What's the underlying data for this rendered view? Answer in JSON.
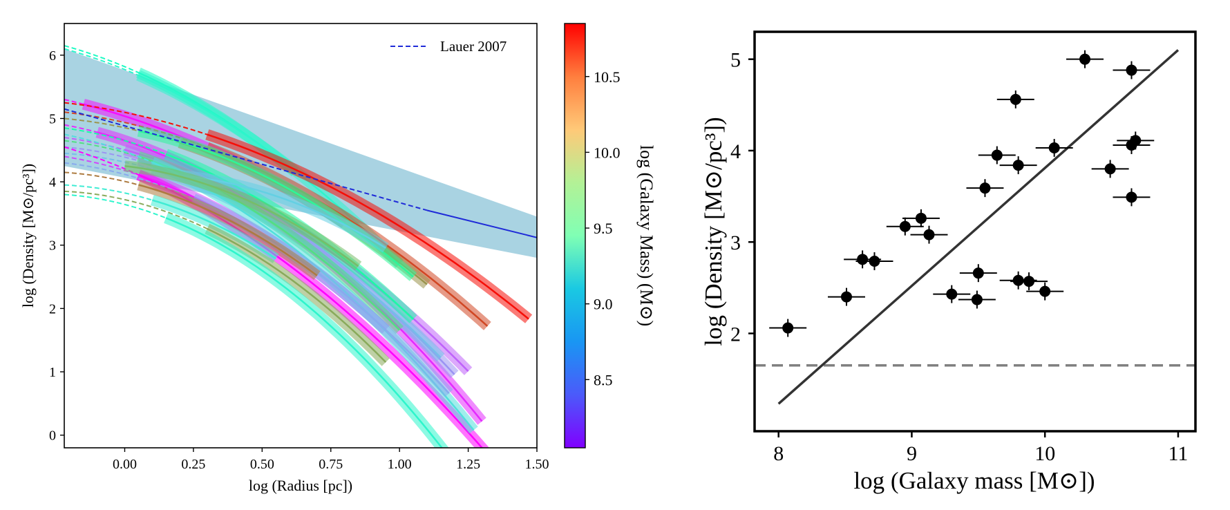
{
  "chart_data": [
    {
      "type": "line",
      "xlabel": "log (Radius [pc])",
      "ylabel": "log (Density [M⊙/pc³])",
      "xlim": [
        -0.22,
        1.5
      ],
      "ylim": [
        -0.2,
        6.5
      ],
      "xticks": [
        0.0,
        0.25,
        0.5,
        0.75,
        1.0,
        1.25,
        1.5
      ],
      "xtick_labels": [
        "0.00",
        "0.25",
        "0.50",
        "0.75",
        "1.00",
        "1.25",
        "1.50"
      ],
      "yticks": [
        0,
        1,
        2,
        3,
        4,
        5,
        6
      ],
      "ytick_labels": [
        "0",
        "1",
        "2",
        "3",
        "4",
        "5",
        "6"
      ],
      "legend": {
        "position": "top-right",
        "entries": [
          {
            "label": "Lauer 2007",
            "style": "dashed",
            "color": "#1f2bd8"
          }
        ]
      },
      "reference_band": {
        "color": "#a9d3e2",
        "x": [
          -0.22,
          1.5
        ],
        "upper": [
          6.1,
          3.45
        ],
        "lower": [
          4.25,
          2.8
        ]
      },
      "reference_line": {
        "name": "Lauer 2007",
        "color": "#1f2bd8",
        "x": [
          -0.22,
          1.1,
          1.5
        ],
        "y": [
          5.15,
          3.55,
          3.12
        ],
        "dashed_until": 1.1
      },
      "profiles": [
        {
          "mass": 9.3,
          "x0": -0.22,
          "xs": 0.05,
          "x1": 0.62,
          "y0": 6.15,
          "slope": -1.2,
          "curv": -1.4
        },
        {
          "mass": 9.2,
          "x0": -0.22,
          "xs": 0.05,
          "x1": 1.0,
          "y0": 6.1,
          "slope": -1.2,
          "curv": -1.3
        },
        {
          "mass": 8.1,
          "x0": -0.22,
          "xs": -0.15,
          "x1": 0.8,
          "y0": 5.3,
          "slope": -1.0,
          "curv": -0.9
        },
        {
          "mass": 10.8,
          "x0": -0.22,
          "xs": 0.3,
          "x1": 1.47,
          "y0": 5.25,
          "slope": -0.5,
          "curv": -0.9
        },
        {
          "mass": 10.6,
          "x0": -0.22,
          "xs": 0.3,
          "x1": 1.32,
          "y0": 5.1,
          "slope": -0.5,
          "curv": -1.1
        },
        {
          "mass": 10.3,
          "x0": -0.22,
          "xs": 0.2,
          "x1": 1.1,
          "y0": 5.0,
          "slope": -0.4,
          "curv": -1.2
        },
        {
          "mass": 8.2,
          "x0": -0.22,
          "xs": -0.1,
          "x1": 1.3,
          "y0": 4.9,
          "slope": -0.8,
          "curv": -1.5
        },
        {
          "mass": 8.4,
          "x0": -0.22,
          "xs": 0.0,
          "x1": 1.25,
          "y0": 4.7,
          "slope": -0.6,
          "curv": -1.3
        },
        {
          "mass": 8.6,
          "x0": -0.22,
          "xs": 0.05,
          "x1": 1.2,
          "y0": 4.55,
          "slope": -0.4,
          "curv": -1.5
        },
        {
          "mass": 8.8,
          "x0": -0.22,
          "xs": 0.1,
          "x1": 1.15,
          "y0": 4.45,
          "slope": -0.3,
          "curv": -1.5
        },
        {
          "mass": 9.6,
          "x0": -0.22,
          "xs": 0.15,
          "x1": 1.05,
          "y0": 4.85,
          "slope": -0.6,
          "curv": -1.4
        },
        {
          "mass": 9.9,
          "x0": -0.22,
          "xs": 0.05,
          "x1": 1.0,
          "y0": 4.65,
          "slope": -0.5,
          "curv": -1.6
        },
        {
          "mass": 8.3,
          "x0": -0.22,
          "xs": 0.05,
          "x1": 0.95,
          "y0": 4.4,
          "slope": -0.7,
          "curv": -1.4
        },
        {
          "mass": 8.0,
          "x0": -0.22,
          "xs": 0.05,
          "x1": 1.31,
          "y0": 4.55,
          "slope": -1.3,
          "curv": -1.2
        },
        {
          "mass": 9.0,
          "x0": -0.22,
          "xs": 0.1,
          "x1": 1.27,
          "y0": 4.75,
          "slope": -0.9,
          "curv": -1.5
        },
        {
          "mass": 8.7,
          "x0": -0.22,
          "xs": 0.25,
          "x1": 1.18,
          "y0": 4.3,
          "slope": -0.5,
          "curv": -1.5
        },
        {
          "mass": 10.4,
          "x0": -0.22,
          "xs": 0.05,
          "x1": 0.7,
          "y0": 4.15,
          "slope": -0.3,
          "curv": -1.6
        },
        {
          "mass": 9.1,
          "x0": -0.22,
          "xs": 0.1,
          "x1": 0.55,
          "y0": 3.95,
          "slope": -0.2,
          "curv": -1.7
        },
        {
          "mass": 10.2,
          "x0": -0.22,
          "xs": 0.3,
          "x1": 0.95,
          "y0": 3.85,
          "slope": -0.2,
          "curv": -1.8
        },
        {
          "mass": 9.2,
          "x0": -0.22,
          "xs": 0.15,
          "x1": 1.25,
          "y0": 3.8,
          "slope": -0.3,
          "curv": -1.9
        },
        {
          "mass": 9.7,
          "x0": 0.05,
          "xs": 0.05,
          "x1": 1.05,
          "y0": 4.8,
          "slope": -0.9,
          "curv": -1.4
        },
        {
          "mass": 8.9,
          "x0": 0.2,
          "xs": 0.2,
          "x1": 0.95,
          "y0": 4.1,
          "slope": -0.4,
          "curv": -1.5
        },
        {
          "mass": 10.1,
          "x0": 0.0,
          "xs": 0.0,
          "x1": 0.85,
          "y0": 4.25,
          "slope": -0.5,
          "curv": -1.6
        }
      ]
    },
    {
      "type": "scatter",
      "xlabel": "log (Galaxy mass [M⊙])",
      "ylabel": "log (Density [M⊙/pc³])",
      "xlim": [
        7.82,
        11.13
      ],
      "ylim": [
        0.93,
        5.3
      ],
      "xticks": [
        8,
        9,
        10,
        11
      ],
      "xtick_labels": [
        "8",
        "9",
        "10",
        "11"
      ],
      "yticks": [
        2,
        3,
        4,
        5
      ],
      "ytick_labels": [
        "2",
        "3",
        "4",
        "5"
      ],
      "x_err": 0.07,
      "y_err": 0.07,
      "points": [
        {
          "x": 8.07,
          "y": 2.06
        },
        {
          "x": 8.51,
          "y": 2.4
        },
        {
          "x": 8.63,
          "y": 2.81
        },
        {
          "x": 8.72,
          "y": 2.79
        },
        {
          "x": 8.95,
          "y": 3.17
        },
        {
          "x": 9.07,
          "y": 3.26
        },
        {
          "x": 9.13,
          "y": 3.08
        },
        {
          "x": 9.3,
          "y": 2.43
        },
        {
          "x": 9.49,
          "y": 2.37
        },
        {
          "x": 9.5,
          "y": 2.66
        },
        {
          "x": 9.55,
          "y": 3.59
        },
        {
          "x": 9.64,
          "y": 3.95
        },
        {
          "x": 9.78,
          "y": 4.56
        },
        {
          "x": 9.8,
          "y": 3.84
        },
        {
          "x": 9.8,
          "y": 2.58
        },
        {
          "x": 9.88,
          "y": 2.57
        },
        {
          "x": 10.0,
          "y": 2.46
        },
        {
          "x": 10.07,
          "y": 4.03
        },
        {
          "x": 10.3,
          "y": 5.0
        },
        {
          "x": 10.49,
          "y": 3.8
        },
        {
          "x": 10.65,
          "y": 4.88
        },
        {
          "x": 10.65,
          "y": 4.06
        },
        {
          "x": 10.68,
          "y": 4.11
        },
        {
          "x": 10.65,
          "y": 3.49
        }
      ],
      "fit_line": {
        "x": [
          8.0,
          11.0
        ],
        "y": [
          1.23,
          5.1
        ],
        "color": "#333333"
      },
      "threshold_line": {
        "y": 1.65,
        "style": "dashed",
        "color": "#808080"
      }
    }
  ],
  "colorbar": {
    "label": "log (Galaxy Mass) (M⊙)",
    "range": [
      8.05,
      10.85
    ],
    "ticks": [
      8.5,
      9.0,
      9.5,
      10.0,
      10.5
    ],
    "tick_labels": [
      "8.5",
      "9.0",
      "9.5",
      "10.0",
      "10.5"
    ],
    "colormap": "rainbow"
  }
}
